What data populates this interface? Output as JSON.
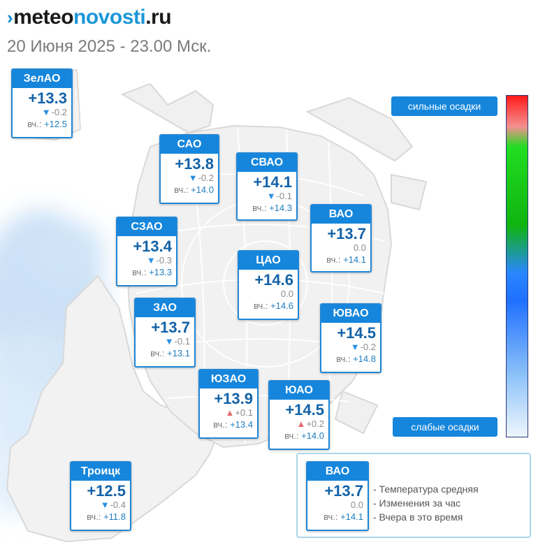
{
  "logo": {
    "mark": "›",
    "part1": "meteo",
    "part2": "novosti",
    "part3": ".ru"
  },
  "subtitle": "20 Июня 2025 - 23.00 Мск.",
  "yesterday_label": "вч.:",
  "colors": {
    "header_blue": "#1586dc",
    "temp_blue": "#1262a8",
    "down_arrow": "#2a8fe0",
    "up_arrow": "#e36b6b"
  },
  "districts": [
    {
      "name": "ЗелАО",
      "temp": "+13.3",
      "trend": "down",
      "change": "-0.2",
      "yesterday": "+12.5"
    },
    {
      "name": "САО",
      "temp": "+13.8",
      "trend": "down",
      "change": "-0.2",
      "yesterday": "+14.0"
    },
    {
      "name": "СВАО",
      "temp": "+14.1",
      "trend": "down",
      "change": "-0.1",
      "yesterday": "+14.3"
    },
    {
      "name": "ВАО",
      "temp": "+13.7",
      "trend": "none",
      "change": "0.0",
      "yesterday": "+14.1"
    },
    {
      "name": "СЗАО",
      "temp": "+13.4",
      "trend": "down",
      "change": "-0.3",
      "yesterday": "+13.3"
    },
    {
      "name": "ЦАО",
      "temp": "+14.6",
      "trend": "none",
      "change": "0.0",
      "yesterday": "+14.6"
    },
    {
      "name": "ЗАО",
      "temp": "+13.7",
      "trend": "down",
      "change": "-0.1",
      "yesterday": "+13.1"
    },
    {
      "name": "ЮВАО",
      "temp": "+14.5",
      "trend": "down",
      "change": "-0.2",
      "yesterday": "+14.8"
    },
    {
      "name": "ЮЗАО",
      "temp": "+13.9",
      "trend": "up",
      "change": "+0.1",
      "yesterday": "+13.4"
    },
    {
      "name": "ЮАО",
      "temp": "+14.5",
      "trend": "up",
      "change": "+0.2",
      "yesterday": "+14.0"
    },
    {
      "name": "Троицк",
      "temp": "+12.5",
      "trend": "down",
      "change": "-0.4",
      "yesterday": "+11.8"
    }
  ],
  "scale": {
    "top_label": "сильные осадки",
    "bottom_label": "слабые осадки"
  },
  "legend": {
    "sample": {
      "name": "ВАО",
      "temp": "+13.7",
      "trend": "none",
      "change": "0.0",
      "yesterday": "+14.1"
    },
    "lines": [
      "- Температура средняя",
      "- Изменения за час",
      "- Вчера в это время"
    ]
  }
}
